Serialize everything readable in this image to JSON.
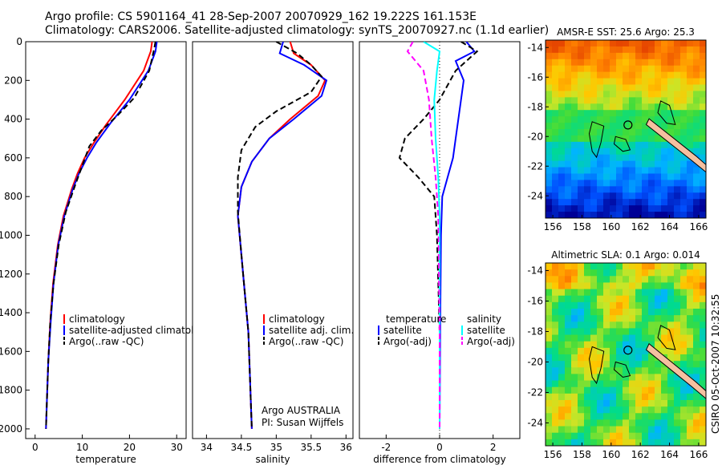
{
  "figure": {
    "title_line1": "Argo profile: CS 5901164_41 28-Sep-2007 20070929_162 19.222S 161.153E",
    "title_line2": "Climatology: CARS2006. Satellite-adjusted climatology: synTS_20070927.nc (1.1d earlier)",
    "credit": "CSIRO 05-Oct-2007 10:32:55",
    "owner_line1": "Argo AUSTRALIA",
    "owner_line2": "PI: Susan Wijffels"
  },
  "colors": {
    "climatology": "#ff0000",
    "satellite": "#0000ff",
    "argo": "#000000",
    "sal_sat": "#00ffff",
    "sal_argo": "#ff00ff"
  },
  "chart_data": [
    {
      "type": "line",
      "xlabel": "temperature",
      "ylabel": "",
      "xlim": [
        -2,
        32
      ],
      "ylim": [
        2050,
        0
      ],
      "xticks": [
        0,
        10,
        20,
        30
      ],
      "yticks": [
        0,
        200,
        400,
        600,
        800,
        1000,
        1200,
        1400,
        1600,
        1800,
        2000
      ],
      "legend": [
        "climatology",
        "satellite-adjusted climatology",
        "Argo(..raw -QC)"
      ],
      "series": [
        {
          "name": "climatology",
          "color": "#ff0000",
          "dash": "",
          "x": [
            24.8,
            24.5,
            23.0,
            19.0,
            15.0,
            12.5,
            10.5,
            9.0,
            7.8,
            6.0,
            4.8,
            3.8,
            3.2,
            2.8,
            2.5,
            2.3
          ],
          "y": [
            0,
            50,
            150,
            300,
            430,
            520,
            600,
            680,
            760,
            900,
            1050,
            1250,
            1450,
            1650,
            1850,
            2000
          ]
        },
        {
          "name": "satellite-adjusted climatology",
          "color": "#0000ff",
          "dash": "",
          "x": [
            25.8,
            25.5,
            24.0,
            20.0,
            16.0,
            13.0,
            11.0,
            9.3,
            8.0,
            6.2,
            4.9,
            3.9,
            3.3,
            2.8,
            2.5,
            2.3
          ],
          "y": [
            0,
            50,
            150,
            300,
            420,
            520,
            600,
            680,
            760,
            900,
            1050,
            1250,
            1450,
            1650,
            1850,
            2000
          ]
        },
        {
          "name": "Argo(..raw -QC)",
          "color": "#000000",
          "dash": "7,4",
          "x": [
            25.5,
            25.2,
            24.2,
            21.0,
            17.5,
            14.0,
            11.5,
            10.0,
            8.5,
            6.5,
            5.0,
            3.9,
            3.2,
            2.8,
            2.5,
            2.3
          ],
          "y": [
            0,
            40,
            150,
            290,
            380,
            460,
            540,
            640,
            740,
            880,
            1050,
            1250,
            1450,
            1650,
            1850,
            2000
          ]
        }
      ]
    },
    {
      "type": "line",
      "xlabel": "salinity",
      "ylabel": "",
      "xlim": [
        33.8,
        36.1
      ],
      "ylim": [
        2050,
        0
      ],
      "xticks": [
        34,
        34.5,
        35,
        35.5,
        36
      ],
      "yticks": [],
      "legend": [
        "climatology",
        "satellite adj. clim.",
        "Argo(..raw -QC)"
      ],
      "series": [
        {
          "name": "climatology",
          "color": "#ff0000",
          "dash": "",
          "x": [
            35.2,
            35.25,
            35.5,
            35.7,
            35.6,
            35.2,
            34.9,
            34.65,
            34.5,
            34.45,
            34.5,
            34.55,
            34.6,
            34.62,
            34.64,
            34.65
          ],
          "y": [
            0,
            60,
            120,
            200,
            280,
            400,
            500,
            620,
            750,
            900,
            1100,
            1300,
            1500,
            1700,
            1900,
            2000
          ]
        },
        {
          "name": "satellite adj. clim.",
          "color": "#0000ff",
          "dash": "",
          "x": [
            35.1,
            35.05,
            35.4,
            35.72,
            35.65,
            35.25,
            34.9,
            34.65,
            34.5,
            34.45,
            34.5,
            34.55,
            34.6,
            34.62,
            34.64,
            34.65
          ],
          "y": [
            0,
            60,
            120,
            200,
            280,
            400,
            500,
            620,
            750,
            900,
            1100,
            1300,
            1500,
            1700,
            1900,
            2000
          ]
        },
        {
          "name": "Argo(..raw -QC)",
          "color": "#000000",
          "dash": "7,4",
          "x": [
            35.0,
            35.3,
            35.5,
            35.65,
            35.5,
            35.0,
            34.7,
            34.5,
            34.45,
            34.45,
            34.5,
            34.55,
            34.6,
            34.62,
            34.64,
            34.65
          ],
          "y": [
            0,
            60,
            120,
            180,
            260,
            360,
            440,
            560,
            700,
            880,
            1100,
            1300,
            1500,
            1700,
            1900,
            2000
          ]
        }
      ]
    },
    {
      "type": "line",
      "xlabel": "difference from climatology",
      "ylabel": "",
      "xlim": [
        -3,
        3
      ],
      "ylim": [
        2050,
        0
      ],
      "xticks": [
        -2,
        0,
        2
      ],
      "yticks": [],
      "legend_left": [
        "temperature",
        "satellite",
        "Argo(-adj)"
      ],
      "legend_right": [
        "salinity",
        "satellite",
        "Argo(-adj)"
      ],
      "series": [
        {
          "name": "temperature satellite",
          "color": "#0000ff",
          "dash": "",
          "x": [
            1.0,
            1.3,
            0.6,
            0.9,
            0.8,
            0.6,
            0.5,
            0.3,
            0.1,
            0.05,
            0.02,
            0.0
          ],
          "y": [
            0,
            50,
            100,
            200,
            300,
            500,
            600,
            700,
            800,
            1000,
            1500,
            2000
          ]
        },
        {
          "name": "temperature Argo(-adj)",
          "color": "#000000",
          "dash": "7,4",
          "x": [
            0.8,
            1.4,
            0.6,
            0.0,
            -0.6,
            -1.3,
            -1.5,
            -0.8,
            -0.2,
            -0.1,
            0.0,
            0.0
          ],
          "y": [
            0,
            50,
            150,
            300,
            400,
            500,
            600,
            700,
            800,
            1000,
            1500,
            2000
          ]
        },
        {
          "name": "salinity satellite",
          "color": "#00ffff",
          "dash": "",
          "x": [
            -0.6,
            0.0,
            -0.1,
            -0.2,
            -0.15,
            -0.05,
            0.0,
            0.0,
            0.0
          ],
          "y": [
            0,
            50,
            150,
            300,
            500,
            700,
            900,
            1500,
            2000
          ]
        },
        {
          "name": "salinity Argo(-adj)",
          "color": "#ff00ff",
          "dash": "7,4",
          "x": [
            -1.0,
            -1.2,
            -0.6,
            -0.4,
            -0.3,
            -0.15,
            -0.05,
            0.0,
            0.0
          ],
          "y": [
            0,
            50,
            150,
            300,
            500,
            700,
            900,
            1500,
            2000
          ]
        }
      ]
    },
    {
      "type": "heatmap",
      "title": "AMSR-E SST: 25.6 Argo: 25.3",
      "xlim": [
        155.5,
        166.5
      ],
      "ylim": [
        -25.5,
        -13.5
      ],
      "xticks": [
        156,
        158,
        160,
        162,
        164,
        166
      ],
      "yticks": [
        -14,
        -16,
        -18,
        -20,
        -22,
        -24
      ],
      "marker": [
        161.153,
        -19.222
      ]
    },
    {
      "type": "heatmap",
      "title": "Altimetric SLA: 0.1 Argo: 0.014",
      "xlim": [
        155.5,
        166.5
      ],
      "ylim": [
        -25.5,
        -13.5
      ],
      "xticks": [
        156,
        158,
        160,
        162,
        164,
        166
      ],
      "yticks": [
        -14,
        -16,
        -18,
        -20,
        -22,
        -24
      ],
      "marker": [
        161.153,
        -19.222
      ]
    }
  ]
}
